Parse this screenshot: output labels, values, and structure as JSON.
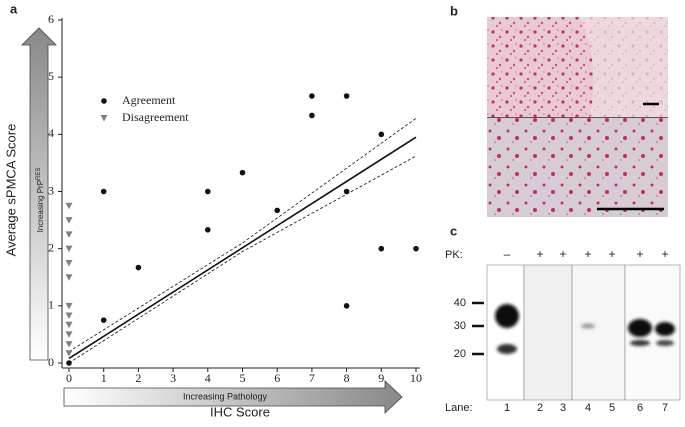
{
  "panel_labels": [
    "a",
    "b",
    "c"
  ],
  "chart_data": {
    "type": "scatter",
    "y_label": "Average sPMCA Score",
    "x_label": "IHC Score",
    "y_arrow_label": {
      "text": "Increasing PrP",
      "sup": "RES"
    },
    "x_arrow_label": "Increasing Pathology",
    "xlim": [
      0,
      10
    ],
    "ylim": [
      0,
      6
    ],
    "xticks": [
      0,
      1,
      2,
      3,
      4,
      5,
      6,
      7,
      8,
      9,
      10
    ],
    "yticks": [
      0,
      1,
      2,
      3,
      4,
      5,
      6
    ],
    "series": [
      {
        "name": "Agreement",
        "color": "#111111",
        "marker": "circle",
        "x": [
          0,
          1,
          1,
          2,
          4,
          4,
          5,
          6,
          7,
          7,
          8,
          8,
          8,
          9,
          9,
          10
        ],
        "y": [
          0,
          3,
          0.75,
          1.67,
          3,
          2.33,
          3.33,
          2.67,
          4.67,
          4.33,
          4.67,
          3,
          1,
          4,
          2,
          2
        ]
      },
      {
        "name": "Disagreement",
        "color": "#808080",
        "marker": "triangle",
        "x": [
          0,
          0,
          0,
          0,
          0,
          0,
          0,
          0,
          0,
          0,
          0,
          0
        ],
        "y": [
          2.75,
          2.5,
          2.25,
          2,
          1.75,
          1.5,
          1,
          0.83,
          0.67,
          0.5,
          0.33,
          0.17
        ]
      }
    ],
    "lines": [
      {
        "style": "solid",
        "x": [
          0,
          10
        ],
        "y": [
          0.08,
          3.95
        ]
      },
      {
        "style": "dashed",
        "x": [
          0,
          5,
          10
        ],
        "y": [
          0.2,
          2.1,
          4.28
        ]
      },
      {
        "style": "dashed",
        "x": [
          0,
          5,
          10
        ],
        "y": [
          0,
          1.95,
          3.62
        ]
      }
    ]
  },
  "blot": {
    "pk_label": "PK:",
    "pk": [
      "–",
      "+",
      "+",
      "+",
      "+",
      "+",
      "+"
    ],
    "markers": [
      40,
      30,
      20
    ],
    "lane_label": "Lane:",
    "lanes": [
      "1",
      "2",
      "3",
      "4",
      "5",
      "6",
      "7"
    ]
  }
}
